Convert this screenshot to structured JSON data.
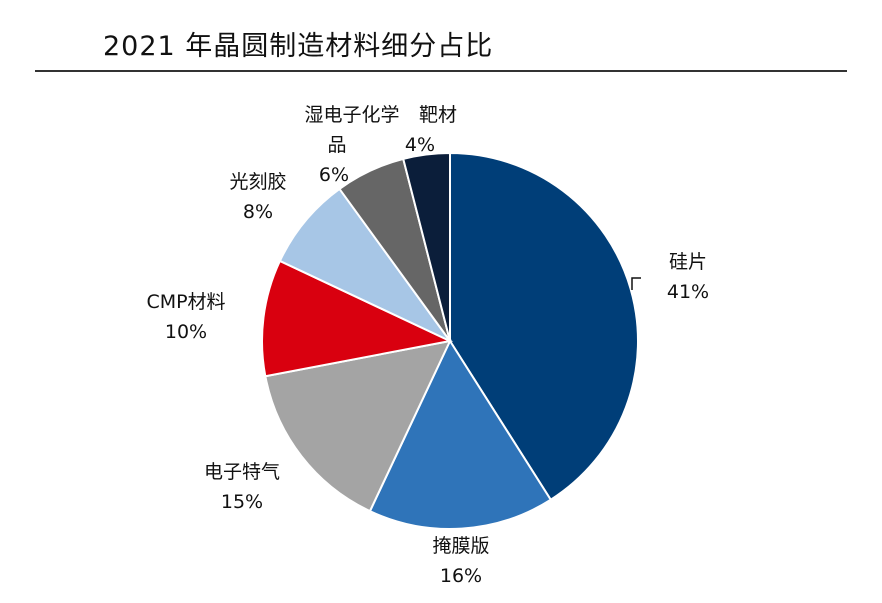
{
  "title": "2021 年晶圆制造材料细分占比",
  "chart_data": {
    "type": "pie",
    "title": "2021 年晶圆制造材料细分占比",
    "unit": "%",
    "start_angle_deg": 0,
    "direction": "clockwise",
    "slices": [
      {
        "label": "硅片",
        "value": 41,
        "value_label": "41%",
        "color": "#003e78"
      },
      {
        "label": "掩膜版",
        "value": 16,
        "value_label": "16%",
        "color": "#2f74b9"
      },
      {
        "label": "电子特气",
        "value": 15,
        "value_label": "15%",
        "color": "#a4a4a4"
      },
      {
        "label": "CMP材料",
        "value": 10,
        "value_label": "10%",
        "color": "#d9000f"
      },
      {
        "label": "光刻胶",
        "value": 8,
        "value_label": "8%",
        "color": "#a7c6e6"
      },
      {
        "label": "湿电子化学品",
        "label_lines": [
          "湿电子化学",
          "品"
        ],
        "value": 6,
        "value_label": "6%",
        "color": "#666666"
      },
      {
        "label": "靶材",
        "value": 4,
        "value_label": "4%",
        "color": "#0b1e3a"
      }
    ]
  }
}
